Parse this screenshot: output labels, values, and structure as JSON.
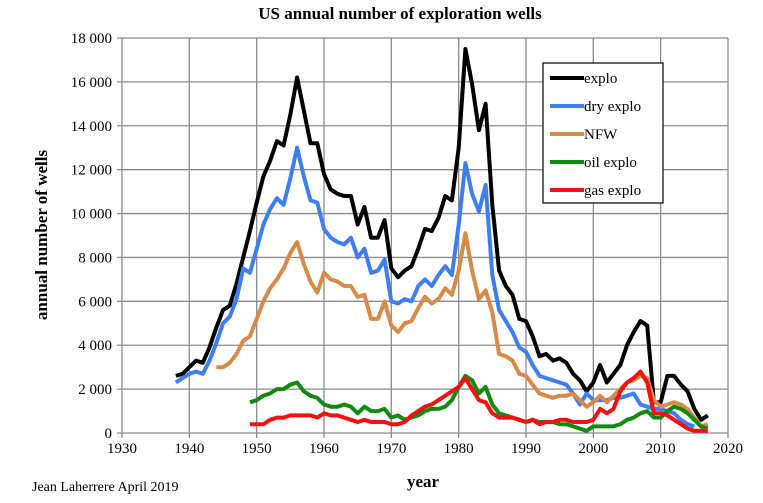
{
  "chart_data": {
    "type": "line",
    "title": "US annual number of exploration wells",
    "xlabel": "year",
    "ylabel": "annual number of wells",
    "xlim": [
      1930,
      2020
    ],
    "ylim": [
      0,
      18000
    ],
    "xticks": [
      1930,
      1940,
      1950,
      1960,
      1970,
      1980,
      1990,
      2000,
      2010,
      2020
    ],
    "yticks": [
      0,
      2000,
      4000,
      6000,
      8000,
      10000,
      12000,
      14000,
      16000,
      18000
    ],
    "ytick_labels": [
      "0",
      "2 000",
      "4 000",
      "6 000",
      "8 000",
      "10 000",
      "12 000",
      "14 000",
      "16 000",
      "18 000"
    ],
    "grid": true,
    "legend_position": "top-right",
    "series": [
      {
        "name": "explo",
        "color": "#000000",
        "start": 1938,
        "values": [
          2600,
          2700,
          3000,
          3300,
          3200,
          3900,
          4800,
          5600,
          5800,
          6800,
          8000,
          9200,
          10500,
          11700,
          12400,
          13300,
          13100,
          14500,
          16200,
          14700,
          13200,
          13200,
          11800,
          11100,
          10900,
          10800,
          10800,
          9500,
          10300,
          8900,
          8900,
          9700,
          7500,
          7100,
          7400,
          7600,
          8400,
          9300,
          9200,
          9800,
          10800,
          10600,
          13000,
          17500,
          15900,
          13800,
          15000,
          10400,
          7400,
          6700,
          6300,
          5200,
          5100,
          4400,
          3500,
          3600,
          3300,
          3400,
          3200,
          2700,
          2400,
          1900,
          2300,
          3100,
          2300,
          2700,
          3100,
          4000,
          4600,
          5100,
          4900,
          1400,
          1400,
          2600,
          2600,
          2200,
          1900,
          1100,
          600,
          800
        ]
      },
      {
        "name": "dry explo",
        "color": "#3f7ef2",
        "start": 1938,
        "values": [
          2300,
          2500,
          2700,
          2800,
          2700,
          3300,
          4100,
          5000,
          5300,
          6100,
          7500,
          7300,
          8400,
          9500,
          10200,
          10700,
          10400,
          11600,
          13000,
          11700,
          10600,
          10500,
          9300,
          8900,
          8700,
          8600,
          8900,
          8000,
          8400,
          7300,
          7400,
          7900,
          6000,
          5900,
          6100,
          6000,
          6700,
          7000,
          6700,
          7200,
          7600,
          7200,
          9500,
          12300,
          10900,
          10100,
          11300,
          7200,
          5600,
          5100,
          4600,
          3900,
          3700,
          3100,
          2600,
          2500,
          2400,
          2300,
          2200,
          1800,
          1300,
          1800,
          1500,
          1500,
          1500,
          1600,
          1600,
          1700,
          1800,
          1300,
          1200,
          1100,
          1100,
          1000,
          900,
          600,
          400,
          300
        ]
      },
      {
        "name": "NFW",
        "color": "#d88a48",
        "start": 1944,
        "values": [
          3000,
          3000,
          3200,
          3600,
          4200,
          4400,
          5200,
          6000,
          6600,
          7000,
          7500,
          8200,
          8700,
          7700,
          6900,
          6400,
          7300,
          7000,
          6900,
          6700,
          6700,
          6200,
          6300,
          5200,
          5200,
          6000,
          4900,
          4600,
          5000,
          5100,
          5700,
          6200,
          5900,
          6100,
          6600,
          6300,
          7400,
          9100,
          7400,
          6100,
          6500,
          5500,
          3600,
          3500,
          3300,
          2700,
          2600,
          2200,
          1800,
          1700,
          1600,
          1700,
          1700,
          1800,
          1500,
          1200,
          1400,
          1700,
          1400,
          1700,
          2000,
          2300,
          2400,
          2600,
          2500,
          1500,
          1200,
          1300,
          1400,
          1300,
          1100,
          700,
          300,
          400
        ]
      },
      {
        "name": "oil explo",
        "color": "#128a12",
        "start": 1949,
        "values": [
          1400,
          1500,
          1700,
          1800,
          2000,
          2000,
          2200,
          2300,
          1900,
          1700,
          1600,
          1300,
          1200,
          1200,
          1300,
          1200,
          900,
          1200,
          1000,
          1000,
          1100,
          700,
          800,
          600,
          700,
          800,
          1000,
          1100,
          1100,
          1200,
          1500,
          2100,
          2600,
          2400,
          1800,
          2100,
          1300,
          900,
          800,
          700,
          600,
          500,
          600,
          500,
          500,
          500,
          400,
          400,
          300,
          200,
          100,
          300,
          300,
          300,
          300,
          400,
          600,
          700,
          900,
          1000,
          700,
          700,
          1000,
          1200,
          1100,
          900,
          600,
          300,
          200
        ]
      },
      {
        "name": "gas explo",
        "color": "#f21010",
        "start": 1949,
        "values": [
          400,
          400,
          400,
          600,
          700,
          700,
          800,
          800,
          800,
          800,
          700,
          900,
          800,
          800,
          700,
          600,
          500,
          600,
          500,
          500,
          500,
          400,
          400,
          500,
          800,
          1000,
          1200,
          1300,
          1500,
          1700,
          1900,
          2100,
          2500,
          2000,
          1500,
          1400,
          900,
          700,
          700,
          700,
          600,
          500,
          600,
          400,
          500,
          500,
          600,
          600,
          500,
          500,
          500,
          600,
          1100,
          900,
          1100,
          1900,
          2300,
          2500,
          2800,
          2300,
          900,
          900,
          800,
          600,
          400,
          200,
          100,
          100,
          100
        ]
      }
    ]
  },
  "credit": "Jean Laherrere April 2019"
}
